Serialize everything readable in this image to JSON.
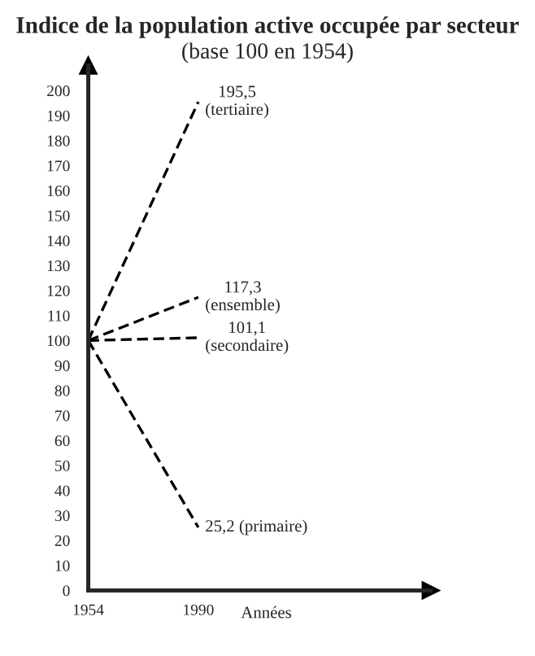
{
  "chart_data": {
    "type": "line",
    "title": "Indice de la population active occupée par secteur",
    "subtitle": "(base 100 en 1954)",
    "xlabel": "Années",
    "x": [
      1954,
      1990
    ],
    "series": [
      {
        "name": "(tertiaire)",
        "color": "#000000",
        "values": [
          100,
          195.5
        ],
        "value_labels": [
          null,
          "195,5"
        ]
      },
      {
        "name": "(ensemble)",
        "color": "#000000",
        "values": [
          100,
          117.3
        ],
        "value_labels": [
          null,
          "117,3"
        ]
      },
      {
        "name": "(secondaire)",
        "color": "#000000",
        "values": [
          100,
          101.1
        ],
        "value_labels": [
          null,
          "101,1"
        ]
      },
      {
        "name": "(primaire)",
        "color": "#000000",
        "values": [
          100,
          25.2
        ],
        "value_labels": [
          null,
          "25,2"
        ]
      }
    ],
    "xlim": [
      1954,
      2066
    ],
    "ylim": [
      0,
      210
    ],
    "xticks": [
      1954,
      1990
    ],
    "yticks": [
      0,
      10,
      20,
      30,
      40,
      50,
      60,
      70,
      80,
      90,
      100,
      110,
      120,
      130,
      140,
      150,
      160,
      170,
      180,
      190,
      200
    ],
    "grid": false,
    "legend": false,
    "marker": "none",
    "line_style": "dashed"
  }
}
